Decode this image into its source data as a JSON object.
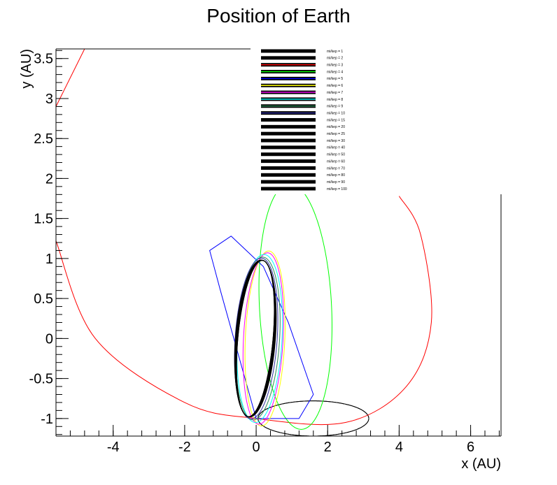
{
  "chart_data": {
    "type": "line",
    "title": "Position of Earth",
    "xlabel": "x (AU)",
    "ylabel": "y (AU)",
    "xlim": [
      -5.6,
      6.85
    ],
    "ylim": [
      -1.22,
      3.62
    ],
    "x_ticks": [
      -4,
      -2,
      0,
      2,
      4,
      6
    ],
    "y_ticks": [
      -1,
      -0.5,
      0,
      0.5,
      1,
      1.5,
      2,
      2.5,
      3,
      3.5
    ],
    "x_tick_labels": [
      "-4",
      "-2",
      "0",
      "2",
      "4",
      "6"
    ],
    "y_tick_labels": [
      "-1",
      "-0.5",
      "0",
      "0.5",
      "1",
      "1.5",
      "2",
      "2.5",
      "3",
      "3.5"
    ],
    "grid": false,
    "legend_position": "top-right",
    "series": [
      {
        "name": "mi/kep = 1",
        "color": "#000000",
        "orbit": {
          "h": 1.6,
          "k": -1.0,
          "a": 1.55,
          "b": 0.22,
          "theta": 0
        },
        "visible_arc": "full"
      },
      {
        "name": "mi/kep = 2",
        "color": "#000000",
        "orbit": {
          "h": 1.6,
          "k": -1.0,
          "a": 1.55,
          "b": 0.22,
          "theta": 0
        },
        "visible_arc": "full"
      },
      {
        "name": "mi/kep = 3",
        "color": "#ff0000",
        "points": [
          [
            -4.8,
            3.62
          ],
          [
            -5.6,
            2.9
          ]
        ],
        "curve_b": [
          [
            -5.6,
            1.22
          ],
          [
            -4.5,
            0.0
          ],
          [
            -2.0,
            -0.8
          ],
          [
            0.0,
            -1.0
          ],
          [
            2.5,
            -1.05
          ],
          [
            4.2,
            -0.6
          ],
          [
            4.9,
            0.2
          ],
          [
            4.6,
            1.3
          ],
          [
            4.0,
            1.78
          ]
        ]
      },
      {
        "name": "mi/kep = 4",
        "color": "#00ff00",
        "orbit": {
          "h": 1.1,
          "k": 0.4,
          "a": 1.55,
          "b": 1.0,
          "theta": 1.75
        },
        "visible_arc": "full"
      },
      {
        "name": "mi/kep = 5",
        "color": "#0000ff",
        "points": [
          [
            0.0,
            -1.0
          ],
          [
            -0.5,
            -0.2
          ],
          [
            -1.0,
            0.6
          ],
          [
            -1.3,
            1.1
          ],
          [
            -0.7,
            1.28
          ],
          [
            0.2,
            0.9
          ],
          [
            0.9,
            0.2
          ],
          [
            1.6,
            -0.7
          ],
          [
            1.2,
            -1.0
          ],
          [
            0.0,
            -1.0
          ]
        ]
      },
      {
        "name": "mi/kep = 6",
        "color": "#ffff00",
        "orbit": {
          "h": 0.25,
          "k": 0.0,
          "a": 1.1,
          "b": 0.55,
          "theta": 1.45
        },
        "visible_arc": "full"
      },
      {
        "name": "mi/kep = 7",
        "color": "#ff00ff",
        "orbit": {
          "h": 0.2,
          "k": 0.0,
          "a": 1.08,
          "b": 0.55,
          "theta": 1.42
        },
        "visible_arc": "full"
      },
      {
        "name": "mi/kep = 8",
        "color": "#00ffff",
        "orbit": {
          "h": 0.1,
          "k": 0.0,
          "a": 1.06,
          "b": 0.62,
          "theta": 1.4
        },
        "visible_arc": "full"
      },
      {
        "name": "mi/kep = 9",
        "color": "#2e8b57",
        "orbit": {
          "h": 0.05,
          "k": 0.0,
          "a": 1.03,
          "b": 0.6,
          "theta": 1.38
        },
        "visible_arc": "full"
      },
      {
        "name": "mi/kep = 10",
        "color": "#2f2fa0",
        "orbit": {
          "h": 0.0,
          "k": 0.0,
          "a": 1.02,
          "b": 0.58,
          "theta": 1.36
        },
        "visible_arc": "full"
      },
      {
        "name": "mi/kep = 15",
        "color": "#000000",
        "orbit": {
          "h": -0.02,
          "k": 0.0,
          "a": 1.0,
          "b": 0.55,
          "theta": 1.34
        },
        "visible_arc": "full"
      },
      {
        "name": "mi/kep = 20",
        "color": "#000000",
        "orbit": {
          "h": -0.02,
          "k": 0.0,
          "a": 1.0,
          "b": 0.54,
          "theta": 1.33
        },
        "visible_arc": "full"
      },
      {
        "name": "mi/kep = 25",
        "color": "#000000",
        "orbit": {
          "h": -0.02,
          "k": 0.0,
          "a": 1.0,
          "b": 0.53,
          "theta": 1.33
        },
        "visible_arc": "full"
      },
      {
        "name": "mi/kep = 30",
        "color": "#000000",
        "orbit": {
          "h": -0.02,
          "k": 0.0,
          "a": 1.0,
          "b": 0.52,
          "theta": 1.33
        },
        "visible_arc": "full"
      },
      {
        "name": "mi/kep = 40",
        "color": "#000000",
        "orbit": {
          "h": -0.02,
          "k": 0.0,
          "a": 1.0,
          "b": 0.51,
          "theta": 1.33
        },
        "visible_arc": "full"
      },
      {
        "name": "mi/kep = 50",
        "color": "#000000",
        "orbit": {
          "h": -0.02,
          "k": 0.0,
          "a": 1.0,
          "b": 0.5,
          "theta": 1.33
        },
        "visible_arc": "full"
      },
      {
        "name": "mi/kep = 60",
        "color": "#000000",
        "orbit": {
          "h": -0.02,
          "k": 0.0,
          "a": 1.0,
          "b": 0.5,
          "theta": 1.32
        },
        "visible_arc": "full"
      },
      {
        "name": "mi/kep = 70",
        "color": "#000000",
        "orbit": {
          "h": -0.02,
          "k": 0.0,
          "a": 1.0,
          "b": 0.49,
          "theta": 1.32
        },
        "visible_arc": "full"
      },
      {
        "name": "mi/kep = 80",
        "color": "#000000",
        "orbit": {
          "h": -0.02,
          "k": 0.0,
          "a": 1.0,
          "b": 0.49,
          "theta": 1.32
        },
        "visible_arc": "full"
      },
      {
        "name": "mi/kep = 90",
        "color": "#000000",
        "orbit": {
          "h": -0.02,
          "k": 0.0,
          "a": 1.0,
          "b": 0.48,
          "theta": 1.32
        },
        "visible_arc": "full"
      },
      {
        "name": "mi/kep = 100",
        "color": "#000000",
        "orbit": {
          "h": -0.02,
          "k": 0.0,
          "a": 1.0,
          "b": 0.48,
          "theta": 1.32
        },
        "visible_arc": "full"
      }
    ]
  }
}
